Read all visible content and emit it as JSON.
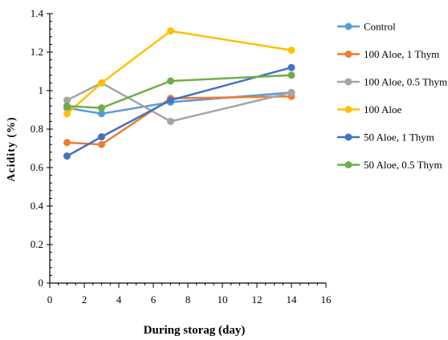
{
  "chart_data": {
    "type": "line",
    "title": "",
    "xlabel": "During storag (day)",
    "ylabel": "Acidity (%)",
    "xlim": [
      0,
      16
    ],
    "ylim": [
      0,
      1.4
    ],
    "xticks": [
      0,
      2,
      4,
      6,
      8,
      10,
      12,
      14,
      16
    ],
    "yticks": [
      0,
      0.2,
      0.4,
      0.6,
      0.8,
      1,
      1.2,
      1.4
    ],
    "grid": false,
    "legend": "right",
    "x": [
      1,
      3,
      7,
      14
    ],
    "series": [
      {
        "name": "Control",
        "color": "#5b9bd5",
        "values": [
          0.91,
          0.88,
          0.94,
          0.99
        ]
      },
      {
        "name": "100 Aloe, 1 Thym",
        "color": "#ed7d31",
        "values": [
          0.73,
          0.72,
          0.96,
          0.97
        ]
      },
      {
        "name": "100 Aloe, 0.5 Thym",
        "color": "#a5a5a5",
        "values": [
          0.95,
          1.04,
          0.84,
          0.99
        ]
      },
      {
        "name": "100 Aloe",
        "color": "#ffc000",
        "values": [
          0.88,
          1.04,
          1.31,
          1.21
        ]
      },
      {
        "name": "50 Aloe, 1 Thym",
        "color": "#4472c4",
        "values": [
          0.66,
          0.76,
          0.95,
          1.12
        ]
      },
      {
        "name": "50 Aloe, 0.5 Thym",
        "color": "#70ad47",
        "values": [
          0.92,
          0.91,
          1.05,
          1.08
        ]
      }
    ]
  }
}
